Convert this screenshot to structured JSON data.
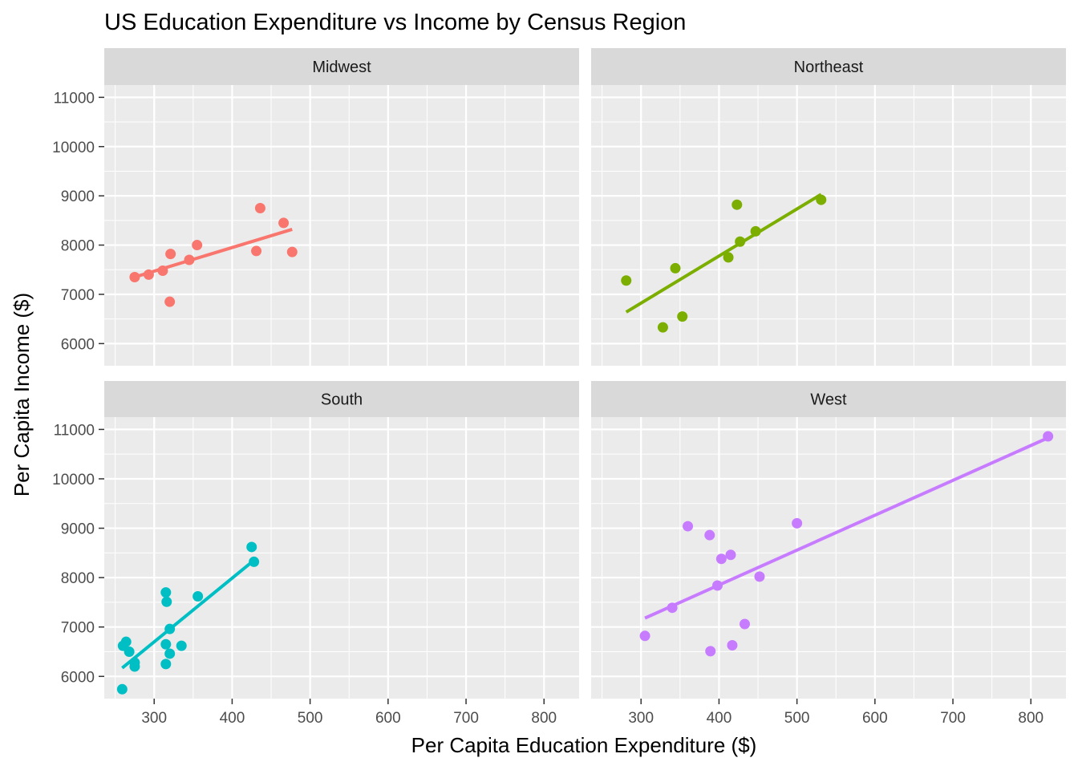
{
  "chart_data": {
    "type": "scatter",
    "title": "US Education Expenditure vs Income by Census Region",
    "xlabel": "Per Capita Education Expenditure ($)",
    "ylabel": "Per Capita Income ($)",
    "xlim": [
      236,
      845
    ],
    "ylim": [
      5550,
      11250
    ],
    "x_ticks": [
      300,
      400,
      500,
      600,
      700,
      800
    ],
    "y_ticks": [
      6000,
      7000,
      8000,
      9000,
      10000,
      11000
    ],
    "x_tick_labels": [
      "300",
      "400",
      "500",
      "600",
      "700",
      "800"
    ],
    "y_tick_labels": [
      "6000",
      "7000",
      "8000",
      "9000",
      "10000",
      "11000"
    ],
    "grid": true,
    "legend": "none",
    "layout": "2x2 facet grid, shared axes",
    "panels": [
      {
        "name": "Midwest",
        "color": "#F8766D",
        "points": [
          [
            275,
            7350
          ],
          [
            293,
            7400
          ],
          [
            311,
            7480
          ],
          [
            321,
            7820
          ],
          [
            320,
            6850
          ],
          [
            345,
            7700
          ],
          [
            355,
            8000
          ],
          [
            431,
            7880
          ],
          [
            436,
            8750
          ],
          [
            466,
            8450
          ],
          [
            477,
            7860
          ]
        ],
        "fit": {
          "x": [
            275,
            477
          ],
          "y": [
            7350,
            8320
          ]
        }
      },
      {
        "name": "Northeast",
        "color": "#7CAE00",
        "points": [
          [
            281,
            7280
          ],
          [
            328,
            6330
          ],
          [
            344,
            7530
          ],
          [
            353,
            6550
          ],
          [
            412,
            7750
          ],
          [
            423,
            8820
          ],
          [
            427,
            8070
          ],
          [
            447,
            8280
          ],
          [
            531,
            8920
          ]
        ],
        "fit": {
          "x": [
            281,
            531
          ],
          "y": [
            6640,
            9030
          ]
        }
      },
      {
        "name": "South",
        "color": "#00BFC4",
        "points": [
          [
            259,
            5740
          ],
          [
            260,
            6620
          ],
          [
            264,
            6700
          ],
          [
            268,
            6500
          ],
          [
            275,
            6280
          ],
          [
            275,
            6200
          ],
          [
            315,
            7700
          ],
          [
            316,
            7510
          ],
          [
            315,
            6650
          ],
          [
            315,
            6250
          ],
          [
            320,
            6460
          ],
          [
            320,
            6960
          ],
          [
            335,
            6620
          ],
          [
            356,
            7620
          ],
          [
            425,
            8620
          ],
          [
            428,
            8320
          ]
        ],
        "fit": {
          "x": [
            259,
            428
          ],
          "y": [
            6170,
            8350
          ]
        }
      },
      {
        "name": "West",
        "color": "#C77CFF",
        "points": [
          [
            305,
            6820
          ],
          [
            340,
            7390
          ],
          [
            360,
            9040
          ],
          [
            388,
            8860
          ],
          [
            389,
            6510
          ],
          [
            398,
            7840
          ],
          [
            403,
            8380
          ],
          [
            415,
            8460
          ],
          [
            417,
            6630
          ],
          [
            433,
            7060
          ],
          [
            452,
            8020
          ],
          [
            500,
            9100
          ],
          [
            822,
            10860
          ]
        ],
        "fit": {
          "x": [
            305,
            822
          ],
          "y": [
            7180,
            10830
          ]
        }
      }
    ]
  }
}
